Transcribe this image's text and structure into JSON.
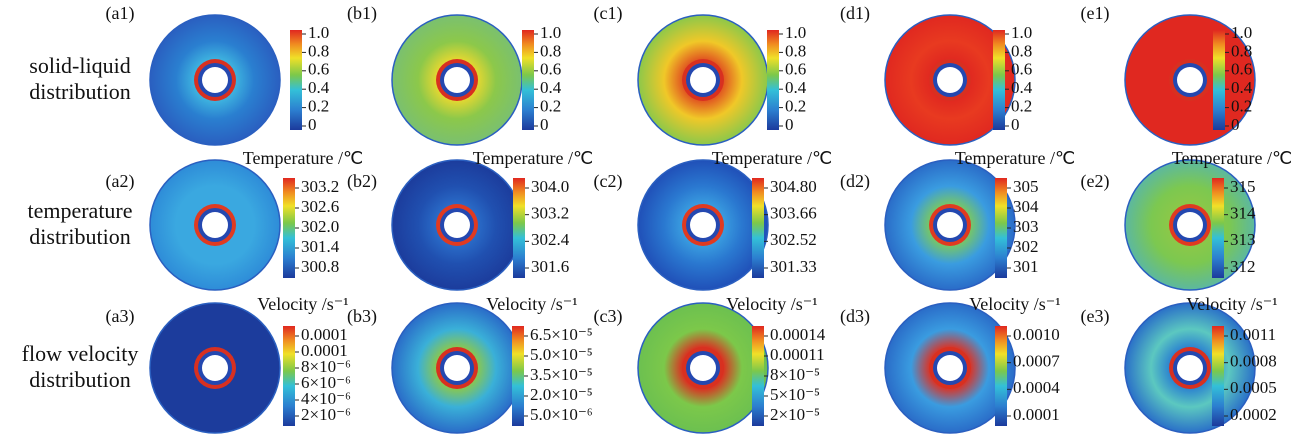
{
  "row_labels": [
    [
      "solid-liquid",
      "distribution"
    ],
    [
      "temperature",
      "distribution"
    ],
    [
      "flow velocity",
      "distribution"
    ]
  ],
  "rows": [
    {
      "panels": [
        {
          "label": "(a1)",
          "ticks": [
            "1.0",
            "0.8",
            "0.6",
            "0.4",
            "0.2",
            "0"
          ]
        },
        {
          "label": "(b1)",
          "ticks": [
            "1.0",
            "0.8",
            "0.6",
            "0.4",
            "0.2",
            "0"
          ]
        },
        {
          "label": "(c1)",
          "ticks": [
            "1.0",
            "0.8",
            "0.6",
            "0.4",
            "0.2",
            "0"
          ]
        },
        {
          "label": "(d1)",
          "ticks": [
            "1.0",
            "0.8",
            "0.6",
            "0.4",
            "0.2",
            "0"
          ]
        },
        {
          "label": "(e1)",
          "ticks": [
            "1.0",
            "0.8",
            "0.6",
            "0.4",
            "0.2",
            "0"
          ]
        }
      ]
    },
    {
      "panels": [
        {
          "label": "(a2)",
          "title": "Temperature /℃",
          "ticks": [
            "303.2",
            "302.6",
            "302.0",
            "301.4",
            "300.8"
          ]
        },
        {
          "label": "(b2)",
          "title": "Temperature /℃",
          "ticks": [
            "304.0",
            "303.2",
            "302.4",
            "301.6"
          ]
        },
        {
          "label": "(c2)",
          "title": "Temperature /℃",
          "ticks": [
            "304.80",
            "303.66",
            "302.52",
            "301.33"
          ]
        },
        {
          "label": "(d2)",
          "title": "Temperature /℃",
          "ticks": [
            "305",
            "304",
            "303",
            "302",
            "301"
          ]
        },
        {
          "label": "(e2)",
          "title": "Temperature /℃",
          "ticks": [
            "315",
            "314",
            "313",
            "312"
          ]
        }
      ]
    },
    {
      "panels": [
        {
          "label": "(a3)",
          "title": "Velocity /s⁻¹",
          "ticks": [
            "0.0001",
            "0.0001",
            "8×10⁻⁶",
            "6×10⁻⁶",
            "4×10⁻⁶",
            "2×10⁻⁶"
          ]
        },
        {
          "label": "(b3)",
          "title": "Velocity /s⁻¹",
          "ticks": [
            "6.5×10⁻⁵",
            "5.0×10⁻⁵",
            "3.5×10⁻⁵",
            "2.0×10⁻⁵",
            "5.0×10⁻⁶"
          ]
        },
        {
          "label": "(c3)",
          "title": "Velocity /s⁻¹",
          "ticks": [
            "0.00014",
            "0.00011",
            "8×10⁻⁵",
            "5×10⁻⁵",
            "2×10⁻⁵"
          ]
        },
        {
          "label": "(d3)",
          "title": "Velocity /s⁻¹",
          "ticks": [
            "0.0010",
            "0.0007",
            "0.0004",
            "0.0001"
          ]
        },
        {
          "label": "(e3)",
          "title": "Velocity /s⁻¹",
          "ticks": [
            "0.0011",
            "0.0008",
            "0.0005",
            "0.0002"
          ]
        }
      ]
    }
  ]
}
